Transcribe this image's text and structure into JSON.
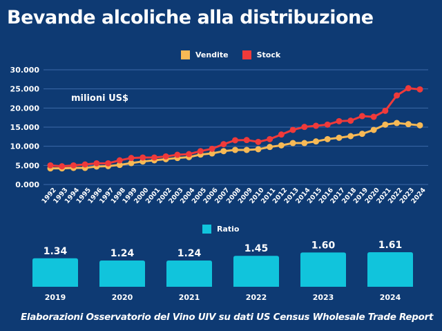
{
  "title": "Bevande alcoliche alla distribuzione",
  "unit_label": "milioni US$",
  "source": "Elaborazioni Osservatorio del Vino UIV su dati US Census Wholesale Trade Report",
  "colors": {
    "background": "#0e3a73",
    "vendite": "#f7b955",
    "stock": "#ef3a3a",
    "ratio": "#11c4dc",
    "grid": "#3d6aa8"
  },
  "chart_data": [
    {
      "type": "line",
      "title": "Bevande alcoliche alla distribuzione",
      "ylabel": "milioni US$",
      "xlabel": "",
      "ylim": [
        0,
        30000
      ],
      "yticks": [
        "0.000",
        "5.000",
        "10.000",
        "15.000",
        "20.000",
        "25.000",
        "30.000"
      ],
      "grid": true,
      "legend": "top-center",
      "x": [
        "1992",
        "1993",
        "1994",
        "1995",
        "1996",
        "1997",
        "1998",
        "1999",
        "2000",
        "2001",
        "2002",
        "2003",
        "2004",
        "2005",
        "2006",
        "2007",
        "2008",
        "2009",
        "2010",
        "2011",
        "2012",
        "2013",
        "2014",
        "2015",
        "2016",
        "2017",
        "2018",
        "2019",
        "2020",
        "2021",
        "2022",
        "2023",
        "2024"
      ],
      "series": [
        {
          "name": "Vendite",
          "values": [
            4220,
            4220,
            4340,
            4340,
            4700,
            4820,
            5120,
            5600,
            6020,
            6330,
            6630,
            6930,
            7170,
            7830,
            8130,
            8730,
            9040,
            9040,
            9220,
            9820,
            10240,
            10840,
            10840,
            11270,
            11870,
            12230,
            12650,
            13250,
            14280,
            15660,
            16080,
            15780,
            15480
          ]
        },
        {
          "name": "Stock",
          "values": [
            5000,
            4760,
            5000,
            5240,
            5540,
            5540,
            6320,
            6930,
            7050,
            7050,
            7350,
            7770,
            7950,
            8730,
            9340,
            10540,
            11570,
            11630,
            11140,
            11870,
            13070,
            14280,
            15060,
            15360,
            15660,
            16570,
            16690,
            17890,
            17700,
            19280,
            23300,
            25180,
            24880
          ]
        }
      ]
    },
    {
      "type": "bar",
      "title": "",
      "legend": "top-center",
      "series_name": "Ratio",
      "categories": [
        "2019",
        "2020",
        "2021",
        "2022",
        "2023",
        "2024"
      ],
      "values": [
        1.34,
        1.24,
        1.24,
        1.45,
        1.6,
        1.61
      ],
      "labels": [
        "1.34",
        "1.24",
        "1.24",
        "1.45",
        "1.60",
        "1.61"
      ],
      "ylim": [
        0,
        1.61
      ]
    }
  ]
}
